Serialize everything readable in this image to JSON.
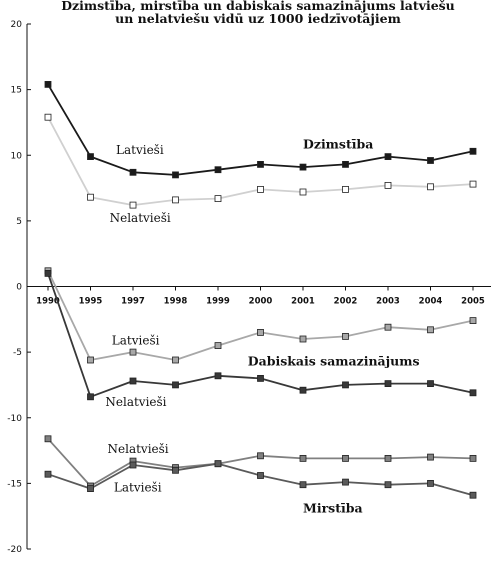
{
  "chart_data": {
    "type": "line",
    "title_line1": "Dzimstība, mirstība un dabiskais samazinājums latviešu",
    "title_line2": "un nelatviešu vidū uz 1000 iedzīvotājiem",
    "categories": [
      "1990",
      "1995",
      "1997",
      "1998",
      "1999",
      "2000",
      "2001",
      "2002",
      "2003",
      "2004",
      "2005"
    ],
    "ylim": [
      -20,
      20
    ],
    "yticks": [
      20,
      15,
      10,
      5,
      0,
      -5,
      -10,
      -15,
      -20
    ],
    "grid": false,
    "series": [
      {
        "key": "birth_lv",
        "values": [
          15.4,
          9.9,
          8.7,
          8.5,
          8.9,
          9.3,
          9.1,
          9.3,
          9.9,
          9.6,
          10.3
        ],
        "color": "#1a1a1a",
        "marker_fill": "#1a1a1a"
      },
      {
        "key": "birth_nlv",
        "values": [
          12.9,
          6.8,
          6.2,
          6.6,
          6.7,
          7.4,
          7.2,
          7.4,
          7.7,
          7.6,
          7.8
        ],
        "color": "#d0d0d0",
        "marker_fill": "#ffffff"
      },
      {
        "key": "natural_nlv",
        "values": [
          1.2,
          -5.6,
          -5.0,
          -5.6,
          -4.5,
          -3.5,
          -4.0,
          -3.8,
          -3.1,
          -3.3,
          -2.6
        ],
        "color": "#a8a8a8",
        "marker_fill": "#a8a8a8"
      },
      {
        "key": "natural_lv",
        "values": [
          1.0,
          -8.4,
          -7.2,
          -7.5,
          -6.8,
          -7.0,
          -7.9,
          -7.5,
          -7.4,
          -7.4,
          -8.1
        ],
        "color": "#383838",
        "marker_fill": "#383838"
      },
      {
        "key": "death_nlv",
        "values": [
          -11.6,
          -15.2,
          -13.3,
          -13.8,
          -13.5,
          -12.9,
          -13.1,
          -13.1,
          -13.1,
          -13.0,
          -13.1
        ],
        "color": "#808080",
        "marker_fill": "#808080"
      },
      {
        "key": "death_lv",
        "values": [
          -14.3,
          -15.4,
          -13.6,
          -14.0,
          -13.5,
          -14.4,
          -15.1,
          -14.9,
          -15.1,
          -15.0,
          -15.9
        ],
        "color": "#5a5a5a",
        "marker_fill": "#5a5a5a"
      }
    ],
    "annotations": [
      {
        "text": "Latvieši",
        "x": "1995",
        "y": 10.1,
        "dx": 0.6,
        "bold": false
      },
      {
        "text": "Nelatvieši",
        "x": "1995",
        "y": 4.9,
        "dx": 0.45,
        "bold": false
      },
      {
        "text": "Dzimstība",
        "x": "2001",
        "y": 10.5,
        "dx": 0.0,
        "bold": true
      },
      {
        "text": "Latvieši",
        "x": "1995",
        "y": -4.4,
        "dx": 0.5,
        "bold": false
      },
      {
        "text": "Dabiskais samazinājums",
        "x": "1999",
        "y": -6.0,
        "dx": 0.7,
        "bold": true
      },
      {
        "text": "Nelatvieši",
        "x": "1995",
        "y": -9.1,
        "dx": 0.35,
        "bold": false
      },
      {
        "text": "Nelatvieši",
        "x": "1995",
        "y": -12.7,
        "dx": 0.4,
        "bold": false
      },
      {
        "text": "Latvieši",
        "x": "1995",
        "y": -15.6,
        "dx": 0.55,
        "bold": false
      },
      {
        "text": "Mirstība",
        "x": "2001",
        "y": -17.2,
        "dx": 0.0,
        "bold": true
      }
    ]
  }
}
